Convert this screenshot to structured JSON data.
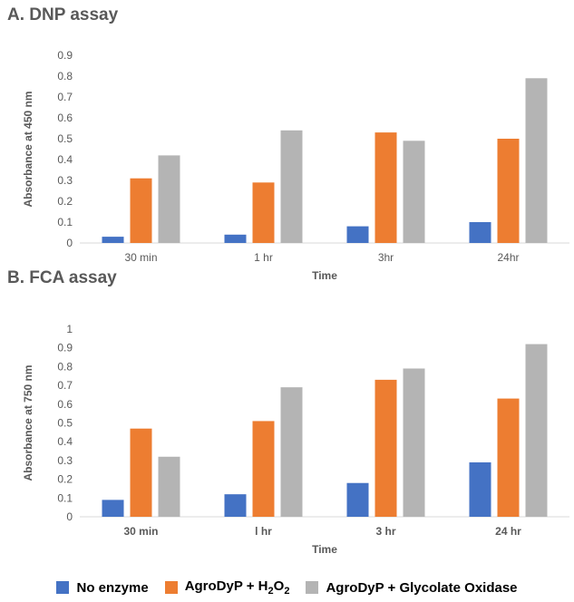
{
  "colors": {
    "no_enzyme": "#4472c4",
    "h2o2": "#ed7d31",
    "glycolate": "#b4b4b4",
    "axis": "#d9d9d9",
    "text": "#595959"
  },
  "legend": {
    "items": [
      {
        "label": "No enzyme",
        "color_key": "no_enzyme"
      },
      {
        "label_main": "AgroDyP + H",
        "label_sub1": "2",
        "label_mid": "O",
        "label_sub2": "2",
        "color_key": "h2o2"
      },
      {
        "label": "AgroDyP + Glycolate Oxidase",
        "color_key": "glycolate"
      }
    ]
  },
  "chart_data": [
    {
      "type": "bar",
      "title": "A. DNP assay",
      "xlabel": "Time",
      "ylabel": "Absorbance  at 450 nm",
      "ylim": [
        0,
        0.9
      ],
      "yticks": [
        "0",
        "0.1",
        "0.2",
        "0.3",
        "0.4",
        "0.5",
        "0.6",
        "0.7",
        "0.8",
        "0.9"
      ],
      "categories": [
        "30 min",
        "1 hr",
        "3hr",
        "24hr"
      ],
      "grid": false,
      "legend_position": "bottom",
      "series": [
        {
          "name": "No enzyme",
          "values": [
            0.03,
            0.04,
            0.08,
            0.1
          ]
        },
        {
          "name": "AgroDyP + H2O2",
          "values": [
            0.31,
            0.29,
            0.53,
            0.5
          ]
        },
        {
          "name": "AgroDyP + Glycolate Oxidase",
          "values": [
            0.42,
            0.54,
            0.49,
            0.79
          ]
        }
      ]
    },
    {
      "type": "bar",
      "title": "B. FCA assay",
      "xlabel": "Time",
      "ylabel": "Absorbance at 750 nm",
      "ylim": [
        0,
        1
      ],
      "yticks": [
        "0",
        "0.1",
        "0.2",
        "0.3",
        "0.4",
        "0.5",
        "0.6",
        "0.7",
        "0.8",
        "0.9",
        "1"
      ],
      "categories": [
        "30 min",
        "l hr",
        "3 hr",
        "24 hr"
      ],
      "grid": false,
      "legend_position": "bottom",
      "series": [
        {
          "name": "No enzyme",
          "values": [
            0.09,
            0.12,
            0.18,
            0.29
          ]
        },
        {
          "name": "AgroDyP + H2O2",
          "values": [
            0.47,
            0.51,
            0.73,
            0.63
          ]
        },
        {
          "name": "AgroDyP + Glycolate Oxidase",
          "values": [
            0.32,
            0.69,
            0.79,
            0.92
          ]
        }
      ]
    }
  ]
}
